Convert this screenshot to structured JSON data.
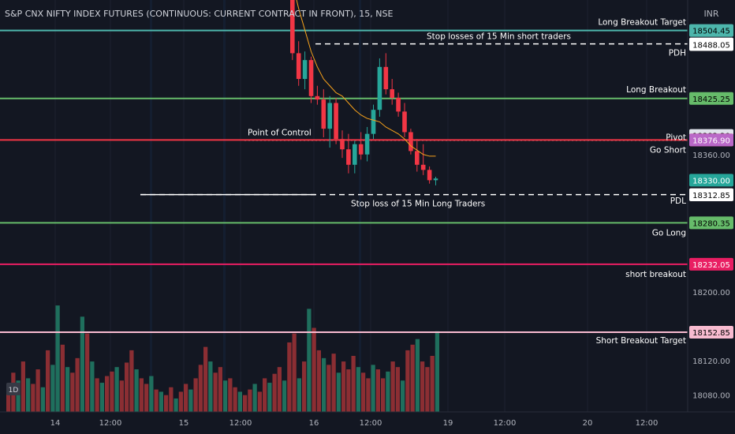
{
  "header": {
    "title": "S&P CNX NIFTY INDEX FUTURES (CONTINUOUS: CURRENT CONTRACT IN FRONT), 15, NSE",
    "currency": "INR"
  },
  "badge_1d": "1D",
  "chart_data": {
    "type": "candlestick",
    "interval": "15",
    "ylim": [
      18060,
      18540
    ],
    "y_ticks": [
      18360.0,
      18200.0,
      18120.0,
      18080.0
    ],
    "x_ticks": [
      "14",
      "12:00",
      "15",
      "12:00",
      "16",
      "12:00",
      "19",
      "12:00",
      "20",
      "12:00"
    ],
    "levels": [
      {
        "id": "long-breakout-target",
        "label": "Long Breakout Target",
        "price": 18504.45,
        "price_text": "18504.45",
        "color": "#4db6ac",
        "tag_color": "#4db6ac",
        "tag_text_color": "#000000",
        "style": "solid"
      },
      {
        "id": "stop-losses-short",
        "label": "Stop losses of 15 Min short traders",
        "price": 18488.85,
        "price_text": "18488.85",
        "color": "#ffffff",
        "tag_color": "#ffffff",
        "tag_text_color": "#000000",
        "style": "dashed"
      },
      {
        "id": "pdh",
        "label": "PDH",
        "price": 18488.05,
        "price_text": "18488.05",
        "color": "#ffffff",
        "tag_color": "#ffffff",
        "tag_text_color": "#000000",
        "style": "none"
      },
      {
        "id": "long-breakout",
        "label": "Long Breakout",
        "price": 18425.25,
        "price_text": "18425.25",
        "color": "#66bb6a",
        "tag_color": "#66bb6a",
        "tag_text_color": "#000000",
        "style": "solid"
      },
      {
        "id": "level-18382",
        "label": "",
        "price": 18382.2,
        "price_text": "18382.20",
        "color": "#e0e3eb",
        "tag_color": "#e0e3eb",
        "tag_text_color": "#000000",
        "style": "none"
      },
      {
        "id": "pivot",
        "label": "Pivot",
        "price": 18376.95,
        "price_text": "18376.95",
        "color": "#ffffff",
        "tag_color": "#f23645",
        "tag_text_color": "#ffffff",
        "style": "dotted"
      },
      {
        "id": "go-short",
        "label": "Go Short",
        "price": 18376.9,
        "price_text": "18376.90",
        "color": "#f23645",
        "tag_color": "#ba68c8",
        "tag_text_color": "#ffffff",
        "style": "solid"
      },
      {
        "id": "last-price",
        "label": "",
        "price": 18330.0,
        "price_text": "18330.00",
        "color": "#26a69a",
        "tag_color": "#26a69a",
        "tag_text_color": "#ffffff",
        "style": "none"
      },
      {
        "id": "stop-loss-long",
        "label": "Stop loss of 15 Min Long Traders",
        "price": 18313.2,
        "price_text": "18313.20",
        "color": "#ffffff",
        "tag_color": "#ffffff",
        "tag_text_color": "#000000",
        "style": "dashed"
      },
      {
        "id": "pdl",
        "label": "PDL",
        "price": 18312.85,
        "price_text": "18312.85",
        "color": "#ffffff",
        "tag_color": "#ffffff",
        "tag_text_color": "#000000",
        "style": "none"
      },
      {
        "id": "go-long",
        "label": "Go Long",
        "price": 18280.35,
        "price_text": "18280.35",
        "color": "#66bb6a",
        "tag_color": "#66bb6a",
        "tag_text_color": "#000000",
        "style": "solid"
      },
      {
        "id": "short-breakout",
        "label": "short breakout",
        "price": 18232.05,
        "price_text": "18232.05",
        "color": "#e91e63",
        "tag_color": "#e91e63",
        "tag_text_color": "#ffffff",
        "style": "solid"
      },
      {
        "id": "short-breakout-target",
        "label": "Short  Breakout Target",
        "price": 18152.85,
        "price_text": "18152.85",
        "color": "#f8bbd0",
        "tag_color": "#f8bbd0",
        "tag_text_color": "#000000",
        "style": "solid"
      }
    ],
    "point_of_control": {
      "label": "Point of Control",
      "price": 18383
    },
    "candles": [
      {
        "o": 18540,
        "h": 18540,
        "l": 18470,
        "c": 18478
      },
      {
        "o": 18478,
        "h": 18492,
        "l": 18440,
        "c": 18448
      },
      {
        "o": 18448,
        "h": 18480,
        "l": 18436,
        "c": 18470
      },
      {
        "o": 18470,
        "h": 18474,
        "l": 18420,
        "c": 18428
      },
      {
        "o": 18428,
        "h": 18440,
        "l": 18418,
        "c": 18424
      },
      {
        "o": 18424,
        "h": 18436,
        "l": 18380,
        "c": 18390
      },
      {
        "o": 18390,
        "h": 18428,
        "l": 18368,
        "c": 18420
      },
      {
        "o": 18420,
        "h": 18426,
        "l": 18372,
        "c": 18378
      },
      {
        "o": 18378,
        "h": 18388,
        "l": 18356,
        "c": 18366
      },
      {
        "o": 18366,
        "h": 18384,
        "l": 18338,
        "c": 18348
      },
      {
        "o": 18348,
        "h": 18376,
        "l": 18338,
        "c": 18372
      },
      {
        "o": 18372,
        "h": 18386,
        "l": 18354,
        "c": 18360
      },
      {
        "o": 18360,
        "h": 18392,
        "l": 18352,
        "c": 18384
      },
      {
        "o": 18384,
        "h": 18418,
        "l": 18378,
        "c": 18412
      },
      {
        "o": 18412,
        "h": 18472,
        "l": 18404,
        "c": 18462
      },
      {
        "o": 18462,
        "h": 18478,
        "l": 18430,
        "c": 18436
      },
      {
        "o": 18436,
        "h": 18448,
        "l": 18418,
        "c": 18426
      },
      {
        "o": 18426,
        "h": 18432,
        "l": 18404,
        "c": 18410
      },
      {
        "o": 18410,
        "h": 18420,
        "l": 18380,
        "c": 18386
      },
      {
        "o": 18386,
        "h": 18390,
        "l": 18360,
        "c": 18364
      },
      {
        "o": 18364,
        "h": 18378,
        "l": 18340,
        "c": 18348
      },
      {
        "o": 18348,
        "h": 18372,
        "l": 18336,
        "c": 18342
      },
      {
        "o": 18342,
        "h": 18346,
        "l": 18326,
        "c": 18330
      },
      {
        "o": 18330,
        "h": 18334,
        "l": 18324,
        "c": 18332
      }
    ],
    "ma_line": [
      18560,
      18530,
      18505,
      18480,
      18462,
      18448,
      18440,
      18432,
      18428,
      18420,
      18412,
      18406,
      18402,
      18400,
      18398,
      18392,
      18388,
      18384,
      18378,
      18370,
      18365,
      18360,
      18358,
      18358
    ],
    "volume_ylim": [
      0,
      100
    ],
    "volume": [
      {
        "v": 20,
        "up": false
      },
      {
        "v": 35,
        "up": false
      },
      {
        "v": 28,
        "up": true
      },
      {
        "v": 45,
        "up": false
      },
      {
        "v": 30,
        "up": true
      },
      {
        "v": 25,
        "up": false
      },
      {
        "v": 38,
        "up": false
      },
      {
        "v": 22,
        "up": true
      },
      {
        "v": 55,
        "up": false
      },
      {
        "v": 42,
        "up": true
      },
      {
        "v": 95,
        "up": true
      },
      {
        "v": 60,
        "up": false
      },
      {
        "v": 40,
        "up": true
      },
      {
        "v": 35,
        "up": false
      },
      {
        "v": 48,
        "up": false
      },
      {
        "v": 85,
        "up": true
      },
      {
        "v": 70,
        "up": false
      },
      {
        "v": 45,
        "up": true
      },
      {
        "v": 30,
        "up": false
      },
      {
        "v": 26,
        "up": true
      },
      {
        "v": 32,
        "up": false
      },
      {
        "v": 36,
        "up": false
      },
      {
        "v": 40,
        "up": true
      },
      {
        "v": 28,
        "up": false
      },
      {
        "v": 44,
        "up": false
      },
      {
        "v": 55,
        "up": false
      },
      {
        "v": 38,
        "up": true
      },
      {
        "v": 30,
        "up": false
      },
      {
        "v": 25,
        "up": false
      },
      {
        "v": 32,
        "up": true
      },
      {
        "v": 20,
        "up": false
      },
      {
        "v": 18,
        "up": true
      },
      {
        "v": 15,
        "up": false
      },
      {
        "v": 22,
        "up": false
      },
      {
        "v": 12,
        "up": true
      },
      {
        "v": 18,
        "up": false
      },
      {
        "v": 25,
        "up": false
      },
      {
        "v": 20,
        "up": true
      },
      {
        "v": 30,
        "up": false
      },
      {
        "v": 42,
        "up": false
      },
      {
        "v": 58,
        "up": false
      },
      {
        "v": 45,
        "up": true
      },
      {
        "v": 35,
        "up": false
      },
      {
        "v": 40,
        "up": false
      },
      {
        "v": 28,
        "up": true
      },
      {
        "v": 30,
        "up": false
      },
      {
        "v": 22,
        "up": false
      },
      {
        "v": 18,
        "up": true
      },
      {
        "v": 15,
        "up": false
      },
      {
        "v": 20,
        "up": false
      },
      {
        "v": 25,
        "up": true
      },
      {
        "v": 18,
        "up": false
      },
      {
        "v": 30,
        "up": false
      },
      {
        "v": 26,
        "up": true
      },
      {
        "v": 34,
        "up": false
      },
      {
        "v": 40,
        "up": false
      },
      {
        "v": 28,
        "up": true
      },
      {
        "v": 62,
        "up": false
      },
      {
        "v": 70,
        "up": false
      },
      {
        "v": 30,
        "up": true
      },
      {
        "v": 45,
        "up": false
      },
      {
        "v": 92,
        "up": true
      },
      {
        "v": 75,
        "up": false
      },
      {
        "v": 55,
        "up": false
      },
      {
        "v": 48,
        "up": true
      },
      {
        "v": 42,
        "up": false
      },
      {
        "v": 52,
        "up": false
      },
      {
        "v": 35,
        "up": true
      },
      {
        "v": 45,
        "up": false
      },
      {
        "v": 38,
        "up": false
      },
      {
        "v": 50,
        "up": false
      },
      {
        "v": 40,
        "up": true
      },
      {
        "v": 35,
        "up": false
      },
      {
        "v": 30,
        "up": false
      },
      {
        "v": 42,
        "up": true
      },
      {
        "v": 38,
        "up": false
      },
      {
        "v": 30,
        "up": false
      },
      {
        "v": 36,
        "up": true
      },
      {
        "v": 45,
        "up": false
      },
      {
        "v": 40,
        "up": false
      },
      {
        "v": 28,
        "up": true
      },
      {
        "v": 55,
        "up": false
      },
      {
        "v": 60,
        "up": false
      },
      {
        "v": 65,
        "up": true
      },
      {
        "v": 45,
        "up": false
      },
      {
        "v": 40,
        "up": false
      },
      {
        "v": 50,
        "up": false
      },
      {
        "v": 72,
        "up": true
      }
    ]
  }
}
